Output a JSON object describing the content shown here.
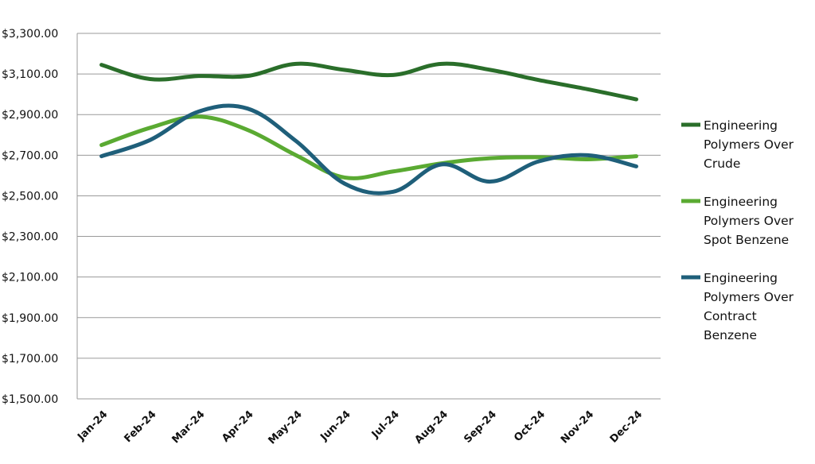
{
  "chart_data": {
    "type": "line",
    "title": "",
    "xlabel": "",
    "ylabel": "",
    "categories": [
      "Jan-24",
      "Feb-24",
      "Mar-24",
      "Apr-24",
      "May-24",
      "Jun-24",
      "Jul-24",
      "Aug-24",
      "Sep-24",
      "Oct-24",
      "Nov-24",
      "Dec-24"
    ],
    "ylim": [
      1500,
      3300
    ],
    "ytick_step": 200,
    "ytick_labels": [
      "$1,500.00",
      "$1,700.00",
      "$1,900.00",
      "$2,100.00",
      "$2,300.00",
      "$2,500.00",
      "$2,700.00",
      "$2,900.00",
      "$3,100.00",
      "$3,300.00"
    ],
    "grid": "horizontal",
    "smooth": true,
    "legend_position": "right",
    "series": [
      {
        "name": "Engineering Polymers Over Crude",
        "legend_lines": [
          "Engineering",
          "Polymers Over",
          "Crude"
        ],
        "color": "#2a6e2a",
        "values": [
          3145,
          3075,
          3090,
          3090,
          3150,
          3120,
          3095,
          3150,
          3120,
          3070,
          3025,
          2975
        ]
      },
      {
        "name": "Engineering Polymers Over Spot Benzene",
        "legend_lines": [
          "Engineering",
          "Polymers Over",
          "Spot Benzene"
        ],
        "color": "#5aaa32",
        "values": [
          2750,
          2835,
          2890,
          2825,
          2700,
          2590,
          2620,
          2660,
          2685,
          2690,
          2680,
          2695
        ]
      },
      {
        "name": "Engineering Polymers Over Contract Benzene",
        "legend_lines": [
          "Engineering",
          "Polymers Over",
          "Contract",
          "Benzene"
        ],
        "color": "#1f5f7a",
        "values": [
          2695,
          2775,
          2915,
          2930,
          2770,
          2560,
          2520,
          2655,
          2570,
          2670,
          2700,
          2645
        ]
      }
    ]
  }
}
